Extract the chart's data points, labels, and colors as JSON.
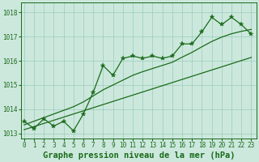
{
  "title": "Graphe pression niveau de la mer (hPa)",
  "ylabel_values": [
    1013,
    1014,
    1015,
    1016,
    1017,
    1018
  ],
  "x_labels": [
    "0",
    "1",
    "2",
    "3",
    "4",
    "5",
    "6",
    "7",
    "8",
    "9",
    "10",
    "11",
    "12",
    "13",
    "14",
    "15",
    "16",
    "17",
    "18",
    "19",
    "20",
    "21",
    "22",
    "23"
  ],
  "pressure_data": [
    1013.5,
    1013.2,
    1013.6,
    1013.3,
    1013.5,
    1013.1,
    1013.8,
    1014.7,
    1015.8,
    1015.4,
    1016.1,
    1016.2,
    1016.1,
    1016.2,
    1016.1,
    1016.2,
    1016.7,
    1016.7,
    1017.2,
    1017.8,
    1017.5,
    1017.8,
    1017.5,
    1017.1
  ],
  "trend_lower": [
    1013.15,
    1013.28,
    1013.41,
    1013.54,
    1013.67,
    1013.8,
    1013.93,
    1014.06,
    1014.19,
    1014.32,
    1014.45,
    1014.58,
    1014.71,
    1014.84,
    1014.97,
    1015.1,
    1015.23,
    1015.36,
    1015.49,
    1015.62,
    1015.75,
    1015.88,
    1016.01,
    1016.14
  ],
  "trend_upper": [
    1013.35,
    1013.5,
    1013.65,
    1013.8,
    1013.95,
    1014.1,
    1014.3,
    1014.55,
    1014.8,
    1015.0,
    1015.2,
    1015.4,
    1015.55,
    1015.68,
    1015.81,
    1015.94,
    1016.15,
    1016.35,
    1016.58,
    1016.8,
    1016.98,
    1017.12,
    1017.22,
    1017.3
  ],
  "line_color": "#1a6b1a",
  "bg_color": "#cce8dd",
  "grid_color": "#99ccbb",
  "ylim_min": 1012.8,
  "ylim_max": 1018.4,
  "xlim_min": -0.3,
  "xlim_max": 23.5,
  "title_fontsize": 7.5,
  "tick_fontsize": 5.5
}
